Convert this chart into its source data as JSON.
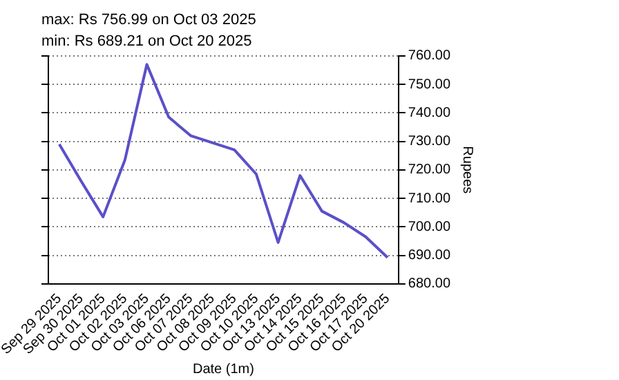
{
  "chart_data": {
    "type": "line",
    "title": "max: Rs 756.99 on Oct 03 2025",
    "subtitle": "min: Rs 689.21 on Oct 20 2025",
    "xlabel": "Date (1m)",
    "ylabel": "Rupees",
    "categories": [
      "Sep 29 2025",
      "Sep 30 2025",
      "Oct 01 2025",
      "Oct 02 2025",
      "Oct 03 2025",
      "Oct 06 2025",
      "Oct 07 2025",
      "Oct 08 2025",
      "Oct 09 2025",
      "Oct 10 2025",
      "Oct 13 2025",
      "Oct 14 2025",
      "Oct 15 2025",
      "Oct 16 2025",
      "Oct 17 2025",
      "Oct 20 2025"
    ],
    "series": [
      {
        "color": "#5a50c8",
        "values": [
          729,
          716,
          703.5,
          723.5,
          756.99,
          738.5,
          732,
          729.5,
          727,
          718.5,
          694.5,
          718,
          705.5,
          701.5,
          696.5,
          689.21
        ]
      }
    ],
    "ylim": [
      680,
      760
    ],
    "yticks": [
      {
        "value": 680,
        "label": "680.00"
      },
      {
        "value": 690,
        "label": "690.00"
      },
      {
        "value": 700,
        "label": "700.00"
      },
      {
        "value": 710,
        "label": "710.00"
      },
      {
        "value": 720,
        "label": "720.00"
      },
      {
        "value": 730,
        "label": "730.00"
      },
      {
        "value": 740,
        "label": "740.00"
      },
      {
        "value": 750,
        "label": "750.00"
      },
      {
        "value": 760,
        "label": "760.00"
      }
    ],
    "grid": "y",
    "marker": "none",
    "line_style": "solid"
  }
}
